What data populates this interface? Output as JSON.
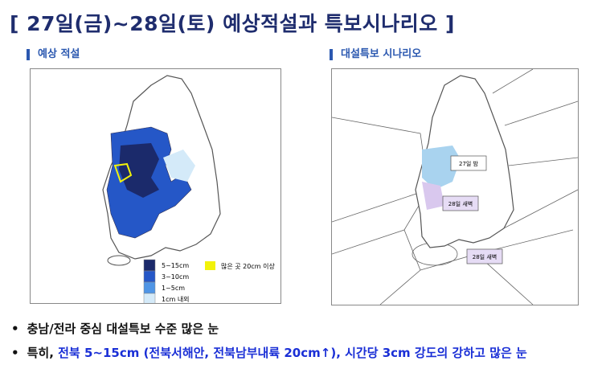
{
  "title": "[ 27일(금)~28일(토) 예상적설과 특보시나리오 ]",
  "left_panel": {
    "heading": "예상 적설",
    "legend": [
      {
        "label": "5~15cm",
        "color": "#1b2a6b"
      },
      {
        "label": "3~10cm",
        "color": "#2557c7"
      },
      {
        "label": "1~5cm",
        "color": "#4f95e6"
      },
      {
        "label": "1cm 내외",
        "color": "#d4eaf9"
      }
    ],
    "legend_extra": {
      "label": "많은 곳 20cm 이상",
      "color": "#f2f20a"
    }
  },
  "right_panel": {
    "heading": "대설특보 시나리오",
    "labels": [
      "27일 밤",
      "28일 새벽",
      "28일 새벽"
    ]
  },
  "bullets": [
    {
      "lead": "충남/전라 중심 대설특보 수준 많은 눈"
    },
    {
      "lead": "특히, ",
      "highlight": "전북 5~15cm (전북서해안, 전북남부내륙 20cm↑), 시간당 3cm 강도의 강하고 많은 눈"
    }
  ]
}
